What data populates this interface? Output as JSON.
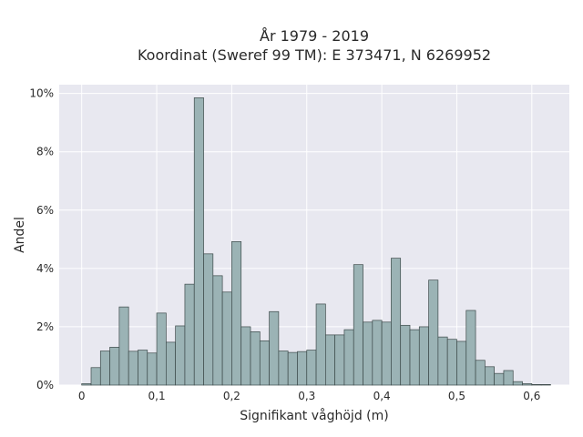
{
  "chart_data": {
    "type": "bar",
    "title": "År 1979 - 2019",
    "subtitle": "Koordinat (Sweref 99 TM): E 373471, N 6269952",
    "xlabel": "Signifikant våghöjd (m)",
    "ylabel": "Andel",
    "x_ticks": [
      {
        "value": 0,
        "label": "0"
      },
      {
        "value": 0.1,
        "label": "0,1"
      },
      {
        "value": 0.2,
        "label": "0,2"
      },
      {
        "value": 0.3,
        "label": "0,3"
      },
      {
        "value": 0.4,
        "label": "0,4"
      },
      {
        "value": 0.5,
        "label": "0,5"
      },
      {
        "value": 0.6,
        "label": "0,6"
      }
    ],
    "y_ticks": [
      {
        "value": 0,
        "label": "0%"
      },
      {
        "value": 2,
        "label": "2%"
      },
      {
        "value": 4,
        "label": "4%"
      },
      {
        "value": 6,
        "label": "6%"
      },
      {
        "value": 8,
        "label": "8%"
      },
      {
        "value": 10,
        "label": "10%"
      }
    ],
    "xlim": [
      -0.03,
      0.65
    ],
    "ylim": [
      0,
      10.3
    ],
    "bin_start": 0.0,
    "bin_width": 0.0125,
    "values": [
      0.05,
      0.6,
      1.17,
      1.3,
      2.68,
      1.16,
      1.2,
      1.1,
      2.47,
      1.47,
      2.03,
      3.46,
      9.85,
      4.5,
      3.75,
      3.19,
      4.92,
      2.0,
      1.83,
      1.52,
      2.52,
      1.17,
      1.12,
      1.15,
      1.2,
      2.78,
      1.72,
      1.72,
      1.9,
      4.13,
      2.16,
      2.22,
      2.16,
      4.35,
      2.05,
      1.9,
      2.0,
      3.6,
      1.65,
      1.57,
      1.5,
      2.56,
      0.85,
      0.63,
      0.4,
      0.5,
      0.12,
      0.05,
      0.02,
      0.02
    ],
    "grid": true,
    "colors": {
      "plot_background": "#e8e8f0",
      "grid": "#ffffff",
      "bar_fill": "#9bb3b5",
      "bar_stroke": "#3d4a4a"
    }
  }
}
